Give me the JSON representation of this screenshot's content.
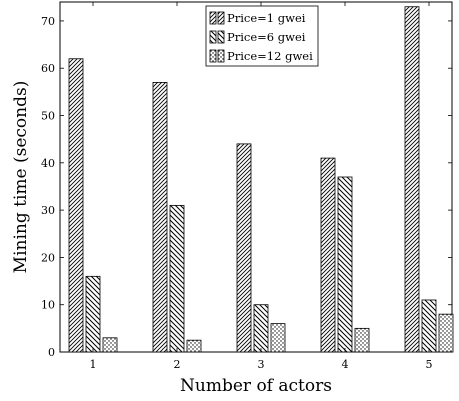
{
  "chart_data": {
    "type": "bar",
    "categories": [
      "1",
      "2",
      "3",
      "4",
      "5"
    ],
    "series": [
      {
        "name": "Price=1 gwei",
        "values": [
          62,
          57,
          44,
          41,
          73
        ],
        "pattern": "diagonal-dense"
      },
      {
        "name": "Price=6 gwei",
        "values": [
          16,
          31,
          10,
          37,
          11
        ],
        "pattern": "diagonal-back"
      },
      {
        "name": "Price=12 gwei",
        "values": [
          3,
          2.5,
          6,
          5,
          8
        ],
        "pattern": "dots"
      }
    ],
    "xlabel": "Number of actors",
    "ylabel": "Mining time (seconds)",
    "ylim": [
      0,
      74
    ],
    "yticks": [
      "0",
      "10",
      "20",
      "30",
      "40",
      "50",
      "60",
      "70"
    ],
    "grid": false,
    "legend_position": "top-center"
  }
}
